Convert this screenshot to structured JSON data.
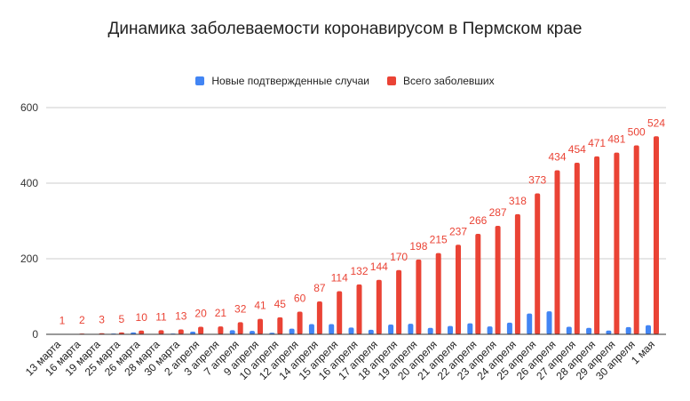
{
  "chart_data": {
    "type": "bar",
    "title": "Динамика заболеваемости коронавирусом в Пермском крае",
    "xlabel": "",
    "ylabel": "",
    "ylim": [
      0,
      600
    ],
    "yticks": [
      0,
      200,
      400,
      600
    ],
    "grid": true,
    "legend_position": "top",
    "categories": [
      "13 марта",
      "16 марта",
      "19 марта",
      "25 марта",
      "26 марта",
      "28 марта",
      "30 марта",
      "2 апреля",
      "3 апреля",
      "7 апреля",
      "9 апреля",
      "10 апреля",
      "12 апреля",
      "14 апреля",
      "15 апреля",
      "16 апреля",
      "17 апреля",
      "18 апреля",
      "19 апреля",
      "20 апреля",
      "21 апреля",
      "22 апреля",
      "23 апреля",
      "24 апреля",
      "25 апреля",
      "26 апреля",
      "27 апреля",
      "28 апреля",
      "29 апреля",
      "30 апреля",
      "1 мая"
    ],
    "series": [
      {
        "name": "Новые подтвержденные случаи",
        "color": "#4285f4",
        "values": [
          1,
          1,
          1,
          2,
          5,
          1,
          2,
          7,
          1,
          11,
          9,
          4,
          15,
          27,
          27,
          18,
          12,
          26,
          28,
          17,
          22,
          29,
          21,
          31,
          55,
          61,
          20,
          17,
          10,
          19,
          24
        ]
      },
      {
        "name": "Всего заболевших",
        "color": "#ea4335",
        "data_labels": true,
        "values": [
          1,
          2,
          3,
          5,
          10,
          11,
          13,
          20,
          21,
          32,
          41,
          45,
          60,
          87,
          114,
          132,
          144,
          170,
          198,
          215,
          237,
          266,
          287,
          318,
          373,
          434,
          454,
          471,
          481,
          500,
          524
        ]
      }
    ]
  }
}
